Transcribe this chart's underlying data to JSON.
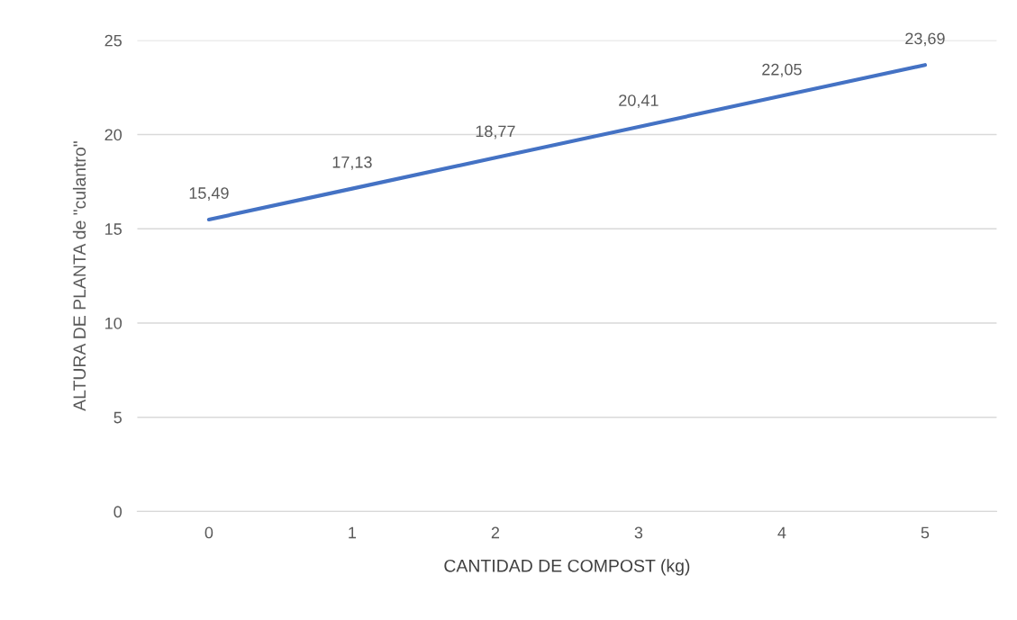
{
  "chart_data": {
    "type": "line",
    "xlabel": "CANTIDAD DE COMPOST (kg)",
    "ylabel": "ALTURA DE PLANTA de \"culantro\"",
    "categories": [
      "0",
      "1",
      "2",
      "3",
      "4",
      "5"
    ],
    "series": [
      {
        "color": "#4472c4",
        "values": [
          15.49,
          17.13,
          18.77,
          20.41,
          22.05,
          23.69
        ],
        "value_labels": [
          "15,49",
          "17,13",
          "18,77",
          "20,41",
          "22,05",
          "23,69"
        ]
      }
    ],
    "ylim": [
      0,
      25
    ],
    "yticks": [
      0,
      5,
      10,
      15,
      20,
      25
    ],
    "grid": "y",
    "marker": "none",
    "line_style": "solid"
  }
}
